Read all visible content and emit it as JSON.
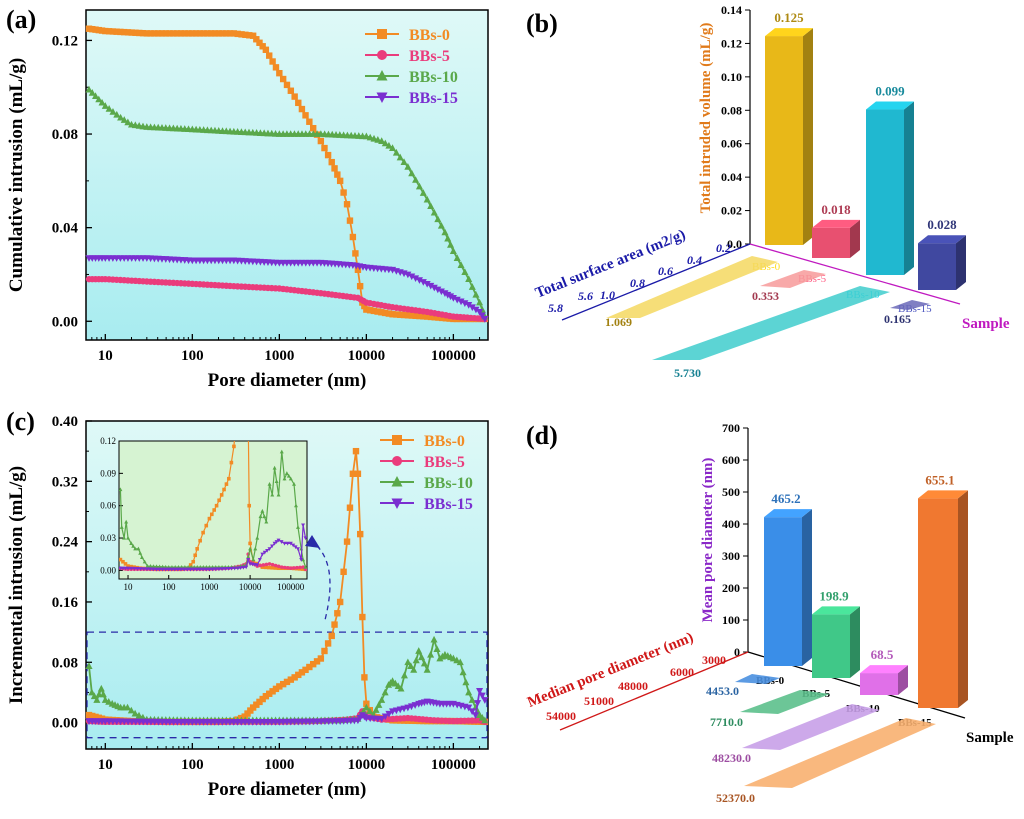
{
  "figure": {
    "panels": [
      "(a)",
      "(b)",
      "(c)",
      "(d)"
    ],
    "colors": {
      "BBs-0": "#f28b24",
      "BBs-5": "#ea3c7c",
      "BBs-10": "#5aa84a",
      "BBs-15": "#7a2fd0",
      "plot_bg_top": "#dff9f7",
      "plot_bg_bottom": "#a8ecf0",
      "inset_bg": "#d6f3d2",
      "dashed_box": "#2a2aa8"
    }
  },
  "chart_data": [
    {
      "id": "a",
      "type": "line",
      "title": "",
      "xlabel": "Pore diameter (nm)",
      "ylabel": "Cumulative intrusion (mL/g)",
      "xscale": "log",
      "xlim": [
        6,
        250000
      ],
      "ylim": [
        -0.008,
        0.133
      ],
      "xticks": [
        10,
        100,
        1000,
        10000,
        100000
      ],
      "xtick_labels": [
        "10",
        "100",
        "1000",
        "10000",
        "100000"
      ],
      "yticks": [
        0,
        0.04,
        0.08,
        0.12
      ],
      "ytick_labels": [
        "0.00",
        "0.04",
        "0.08",
        "0.12"
      ],
      "legend_position": "top-right",
      "series": [
        {
          "name": "BBs-0",
          "marker": "square",
          "points": [
            [
              6.5,
              0.125
            ],
            [
              10,
              0.124
            ],
            [
              30,
              0.123
            ],
            [
              100,
              0.123
            ],
            [
              300,
              0.123
            ],
            [
              500,
              0.122
            ],
            [
              700,
              0.116
            ],
            [
              1000,
              0.106
            ],
            [
              1500,
              0.096
            ],
            [
              2000,
              0.088
            ],
            [
              3000,
              0.077
            ],
            [
              4000,
              0.068
            ],
            [
              5000,
              0.06
            ],
            [
              6000,
              0.05
            ],
            [
              7000,
              0.036
            ],
            [
              8000,
              0.022
            ],
            [
              9000,
              0.008
            ],
            [
              10000,
              0.005
            ],
            [
              20000,
              0.003
            ],
            [
              50000,
              0.002
            ],
            [
              100000,
              0.001
            ],
            [
              230000,
              0.001
            ]
          ]
        },
        {
          "name": "BBs-5",
          "marker": "circle",
          "points": [
            [
              6.5,
              0.018
            ],
            [
              10,
              0.018
            ],
            [
              30,
              0.017
            ],
            [
              100,
              0.016
            ],
            [
              300,
              0.015
            ],
            [
              1000,
              0.014
            ],
            [
              3000,
              0.012
            ],
            [
              8000,
              0.01
            ],
            [
              10000,
              0.008
            ],
            [
              20000,
              0.006
            ],
            [
              50000,
              0.004
            ],
            [
              100000,
              0.002
            ],
            [
              230000,
              0.001
            ]
          ]
        },
        {
          "name": "BBs-10",
          "marker": "triangle-up",
          "points": [
            [
              6.5,
              0.099
            ],
            [
              10,
              0.092
            ],
            [
              15,
              0.087
            ],
            [
              20,
              0.084
            ],
            [
              30,
              0.083
            ],
            [
              100,
              0.082
            ],
            [
              300,
              0.081
            ],
            [
              1000,
              0.08
            ],
            [
              3000,
              0.08
            ],
            [
              10000,
              0.079
            ],
            [
              15000,
              0.077
            ],
            [
              20000,
              0.074
            ],
            [
              30000,
              0.066
            ],
            [
              50000,
              0.052
            ],
            [
              80000,
              0.038
            ],
            [
              100000,
              0.03
            ],
            [
              150000,
              0.018
            ],
            [
              200000,
              0.008
            ],
            [
              230000,
              0.002
            ]
          ]
        },
        {
          "name": "BBs-15",
          "marker": "triangle-down",
          "points": [
            [
              6.5,
              0.027
            ],
            [
              10,
              0.027
            ],
            [
              30,
              0.027
            ],
            [
              100,
              0.026
            ],
            [
              300,
              0.026
            ],
            [
              1000,
              0.025
            ],
            [
              3000,
              0.025
            ],
            [
              7000,
              0.024
            ],
            [
              10000,
              0.023
            ],
            [
              20000,
              0.022
            ],
            [
              30000,
              0.02
            ],
            [
              50000,
              0.016
            ],
            [
              80000,
              0.012
            ],
            [
              100000,
              0.01
            ],
            [
              150000,
              0.007
            ],
            [
              200000,
              0.004
            ],
            [
              230000,
              0.001
            ]
          ]
        }
      ]
    },
    {
      "id": "b",
      "type": "bar3d",
      "xlabel": "Sample",
      "ylabel": "Total intruded volume (mL/g)",
      "zlabel": "Total surface area (m2/g)",
      "categories": [
        "BBs-0",
        "BBs-5",
        "BBs-10",
        "BBs-15"
      ],
      "ylim": [
        0,
        0.14
      ],
      "yticks": [
        0,
        0.02,
        0.04,
        0.06,
        0.08,
        0.1,
        0.12,
        0.14
      ],
      "ytick_labels": [
        "0.0",
        "0.02",
        "0.04",
        "0.06",
        "0.08",
        "0.10",
        "0.12",
        "0.14"
      ],
      "ztick_labels": [
        "0.2",
        "0.4",
        "0.6",
        "0.8",
        "1.0",
        "5.6",
        "5.8"
      ],
      "volume_values": [
        0.125,
        0.018,
        0.099,
        0.028
      ],
      "volume_labels": [
        "0.125",
        "0.018",
        "0.099",
        "0.028"
      ],
      "surface_area_values": [
        1.069,
        0.353,
        5.73,
        0.165
      ],
      "surface_area_labels": [
        "1.069",
        "0.353",
        "5.730",
        "0.165"
      ]
    },
    {
      "id": "c",
      "type": "line",
      "title": "",
      "xlabel": "Pore diameter (nm)",
      "ylabel": "Incremental intrusion (mL/g)",
      "xscale": "log",
      "xlim": [
        6,
        250000
      ],
      "ylim": [
        -0.035,
        0.4
      ],
      "xticks": [
        10,
        100,
        1000,
        10000,
        100000
      ],
      "xtick_labels": [
        "10",
        "100",
        "1000",
        "10000",
        "100000"
      ],
      "yticks": [
        0,
        0.08,
        0.16,
        0.24,
        0.32,
        0.4
      ],
      "ytick_labels": [
        "0.00",
        "0.08",
        "0.16",
        "0.24",
        "0.32",
        "0.40"
      ],
      "legend_position": "top-right",
      "highlight_range": [
        -0.02,
        0.12
      ],
      "inset": {
        "xlim": [
          6,
          250000
        ],
        "ylim": [
          -0.008,
          0.12
        ],
        "xticks": [
          10,
          100,
          1000,
          10000,
          100000
        ],
        "xtick_labels": [
          "10",
          "100",
          "1000",
          "10000",
          "100000"
        ],
        "yticks": [
          0,
          0.03,
          0.06,
          0.09,
          0.12
        ],
        "ytick_labels": [
          "0.00",
          "0.03",
          "0.06",
          "0.09",
          "0.12"
        ]
      },
      "series": [
        {
          "name": "BBs-0",
          "marker": "square",
          "points": [
            [
              6.5,
              0.01
            ],
            [
              10,
              0.004
            ],
            [
              20,
              0.002
            ],
            [
              50,
              0.001
            ],
            [
              100,
              0.001
            ],
            [
              200,
              0.001
            ],
            [
              300,
              0.002
            ],
            [
              400,
              0.008
            ],
            [
              500,
              0.02
            ],
            [
              700,
              0.035
            ],
            [
              1000,
              0.048
            ],
            [
              1500,
              0.06
            ],
            [
              2000,
              0.07
            ],
            [
              3000,
              0.085
            ],
            [
              4000,
              0.115
            ],
            [
              5000,
              0.16
            ],
            [
              6000,
              0.24
            ],
            [
              7000,
              0.33
            ],
            [
              7600,
              0.36
            ],
            [
              8000,
              0.33
            ],
            [
              8500,
              0.25
            ],
            [
              9000,
              0.14
            ],
            [
              9500,
              0.06
            ],
            [
              10000,
              0.025
            ],
            [
              12000,
              0.008
            ],
            [
              20000,
              0.003
            ],
            [
              50000,
              0.002
            ],
            [
              100000,
              0.002
            ],
            [
              230000,
              0.001
            ]
          ]
        },
        {
          "name": "BBs-5",
          "marker": "circle",
          "points": [
            [
              6.5,
              0.002
            ],
            [
              10,
              0.001
            ],
            [
              50,
              0.001
            ],
            [
              200,
              0.001
            ],
            [
              1000,
              0.001
            ],
            [
              3000,
              0.002
            ],
            [
              6000,
              0.004
            ],
            [
              8000,
              0.006
            ],
            [
              9000,
              0.015
            ],
            [
              10000,
              0.008
            ],
            [
              15000,
              0.004
            ],
            [
              30000,
              0.006
            ],
            [
              60000,
              0.003
            ],
            [
              100000,
              0.002
            ],
            [
              200000,
              0.003
            ],
            [
              230000,
              0.001
            ]
          ]
        },
        {
          "name": "BBs-10",
          "marker": "triangle-up",
          "points": [
            [
              6.5,
              0.075
            ],
            [
              7,
              0.04
            ],
            [
              8,
              0.03
            ],
            [
              9,
              0.045
            ],
            [
              10,
              0.03
            ],
            [
              12,
              0.025
            ],
            [
              15,
              0.02
            ],
            [
              18,
              0.02
            ],
            [
              22,
              0.012
            ],
            [
              30,
              0.004
            ],
            [
              100,
              0.003
            ],
            [
              300,
              0.003
            ],
            [
              1000,
              0.003
            ],
            [
              5000,
              0.003
            ],
            [
              8000,
              0.005
            ],
            [
              10000,
              0.02
            ],
            [
              12000,
              0.01
            ],
            [
              15000,
              0.03
            ],
            [
              18000,
              0.05
            ],
            [
              20000,
              0.055
            ],
            [
              25000,
              0.045
            ],
            [
              30000,
              0.08
            ],
            [
              35000,
              0.07
            ],
            [
              40000,
              0.095
            ],
            [
              50000,
              0.07
            ],
            [
              60000,
              0.11
            ],
            [
              70000,
              0.085
            ],
            [
              80000,
              0.09
            ],
            [
              100000,
              0.085
            ],
            [
              120000,
              0.08
            ],
            [
              150000,
              0.04
            ],
            [
              180000,
              0.02
            ],
            [
              200000,
              0.01
            ],
            [
              230000,
              0.003
            ]
          ]
        },
        {
          "name": "BBs-15",
          "marker": "triangle-down",
          "points": [
            [
              6.5,
              0.002
            ],
            [
              10,
              0.002
            ],
            [
              50,
              0.001
            ],
            [
              200,
              0.001
            ],
            [
              1000,
              0.001
            ],
            [
              5000,
              0.002
            ],
            [
              8000,
              0.003
            ],
            [
              9000,
              0.01
            ],
            [
              10000,
              0.006
            ],
            [
              15000,
              0.005
            ],
            [
              20000,
              0.015
            ],
            [
              30000,
              0.02
            ],
            [
              40000,
              0.025
            ],
            [
              50000,
              0.028
            ],
            [
              70000,
              0.025
            ],
            [
              100000,
              0.025
            ],
            [
              150000,
              0.02
            ],
            [
              180000,
              0.01
            ],
            [
              200000,
              0.042
            ],
            [
              230000,
              0.03
            ]
          ]
        }
      ]
    },
    {
      "id": "d",
      "type": "bar3d",
      "xlabel": "Sample",
      "ylabel": "Mean pore diameter (nm)",
      "zlabel": "Median pore diameter (nm)",
      "categories": [
        "BBs-0",
        "BBs-5",
        "BBs-10",
        "BBs-15"
      ],
      "ylim": [
        0,
        700
      ],
      "yticks": [
        0,
        100,
        200,
        300,
        400,
        500,
        600,
        700
      ],
      "ytick_labels": [
        "0",
        "100",
        "200",
        "300",
        "400",
        "500",
        "600",
        "700"
      ],
      "ztick_labels": [
        "3000",
        "6000",
        "48000",
        "51000",
        "54000"
      ],
      "mean_values": [
        465.2,
        198.9,
        68.5,
        655.1
      ],
      "mean_labels": [
        "465.2",
        "198.9",
        "68.5",
        "655.1"
      ],
      "median_values": [
        4453.0,
        7710.0,
        48230.0,
        52370.0
      ],
      "median_labels": [
        "4453.0",
        "7710.0",
        "48230.0",
        "52370.0"
      ]
    }
  ]
}
